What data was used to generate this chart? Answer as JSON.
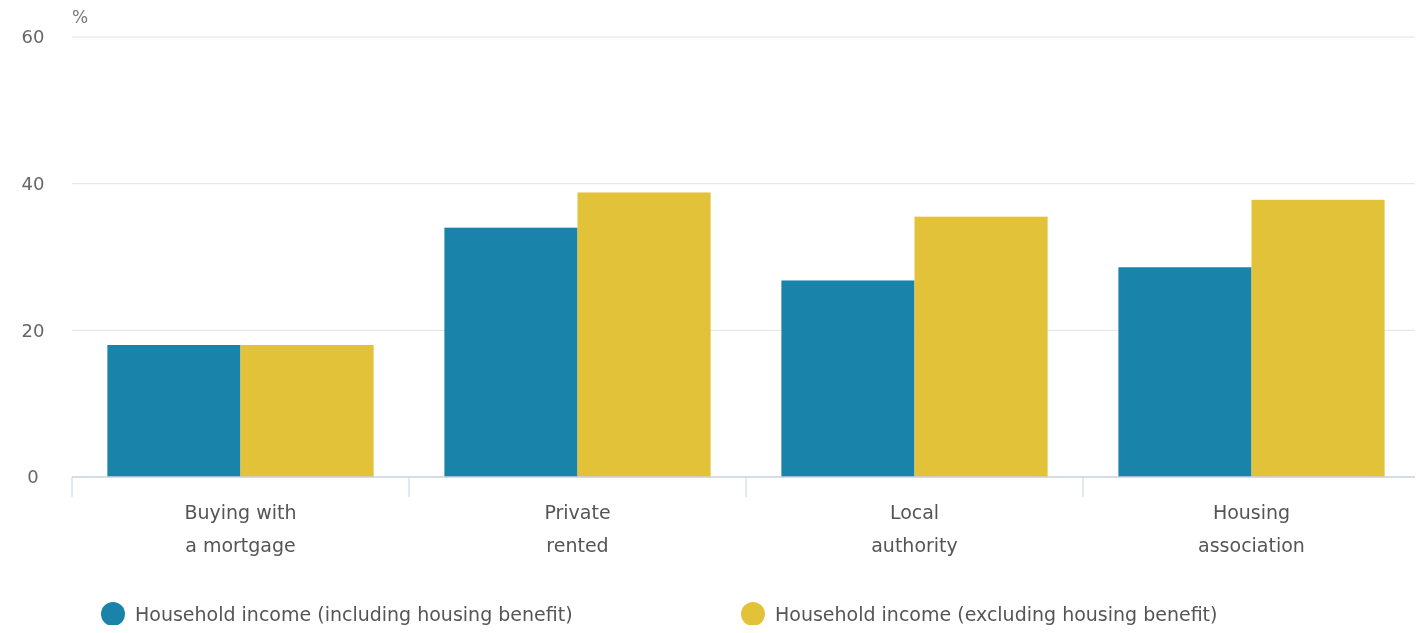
{
  "chart_data": {
    "type": "bar",
    "ylabel": "%",
    "categories": [
      "Buying with a mortgage",
      "Private rented",
      "Local authority",
      "Housing association"
    ],
    "series": [
      {
        "name": "Household income (including housing benefit)",
        "color": "#1a83aa",
        "values": [
          18,
          34,
          26.8,
          28.6
        ]
      },
      {
        "name": "Household income (excluding housing benefit)",
        "color": "#e2c238",
        "values": [
          18,
          38.8,
          35.5,
          37.8
        ]
      }
    ],
    "ylim": [
      0,
      60
    ],
    "yticks": [
      0,
      20,
      40,
      60
    ],
    "grid": "y",
    "legend": "bottom"
  }
}
